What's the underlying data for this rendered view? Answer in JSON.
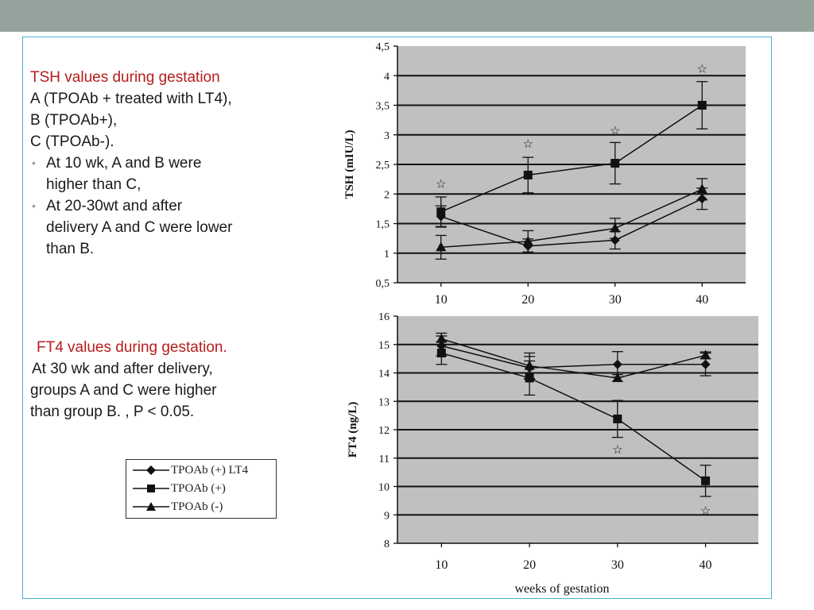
{
  "slide": {
    "tsh_heading": "TSH values  during gestation",
    "tsh_lines": [
      "A (TPOAb + treated with LT4),",
      "B (TPOAb+),",
      "C (TPOAb-)."
    ],
    "tsh_bullets": [
      [
        "At 10 wk, A and B were",
        "higher than C,"
      ],
      [
        "At 20-30wt and after",
        "delivery  A and C were lower",
        "than B."
      ]
    ],
    "ft4_heading": "FT4  values during gestation.",
    "ft4_lines": [
      "At 30 wk and after delivery,",
      "groups A and C were higher",
      "than group B. , P  < 0.05."
    ]
  },
  "legend": {
    "items": [
      {
        "label": "TPOAb (+) LT4",
        "marker": "diamond"
      },
      {
        "label": "TPOAb (+)",
        "marker": "square"
      },
      {
        "label": "TPOAb (-)",
        "marker": "triangle"
      }
    ]
  },
  "colors": {
    "plot_bg": "#c0c0c0",
    "heading_red": "#b71c1c",
    "frame": "#43b6d2",
    "topbar": "#94a39c"
  },
  "chart_data": [
    {
      "type": "line",
      "ylabel": "TSH (mIU/L)",
      "x": [
        10,
        20,
        30,
        40
      ],
      "ylim": [
        0.5,
        4.5
      ],
      "yticks": [
        "0,5",
        "1",
        "1,5",
        "2",
        "2,5",
        "3",
        "3,5",
        "4",
        "4,5"
      ],
      "xticks": [
        "10",
        "20",
        "30",
        "40"
      ],
      "grid": true,
      "series": [
        {
          "name": "TPOAb (+) LT4",
          "marker": "diamond",
          "values": [
            1.62,
            1.12,
            1.22,
            1.92
          ],
          "errors": [
            0.18,
            0.12,
            0.15,
            0.18
          ]
        },
        {
          "name": "TPOAb (+)",
          "marker": "square",
          "values": [
            1.7,
            2.32,
            2.52,
            3.5
          ],
          "errors": [
            0.25,
            0.3,
            0.35,
            0.4
          ]
        },
        {
          "name": "TPOAb (-)",
          "marker": "triangle",
          "values": [
            1.1,
            1.2,
            1.42,
            2.08
          ],
          "errors": [
            0.2,
            0.18,
            0.17,
            0.18
          ]
        }
      ],
      "annotations": [
        {
          "x": 10,
          "y": 2.17,
          "symbol": "☆"
        },
        {
          "x": 20,
          "y": 2.85,
          "symbol": "☆"
        },
        {
          "x": 30,
          "y": 3.07,
          "symbol": "☆"
        },
        {
          "x": 40,
          "y": 4.12,
          "symbol": "☆"
        }
      ]
    },
    {
      "type": "line",
      "ylabel": "FT4 (ng/L)",
      "xlabel": "weeks of gestation",
      "x": [
        10,
        20,
        30,
        40
      ],
      "ylim": [
        8,
        16
      ],
      "yticks": [
        "8",
        "9",
        "10",
        "11",
        "12",
        "13",
        "14",
        "15",
        "16"
      ],
      "xticks": [
        "10",
        "20",
        "30",
        "40"
      ],
      "grid": true,
      "series": [
        {
          "name": "TPOAb (+) LT4",
          "marker": "diamond",
          "values": [
            14.95,
            14.18,
            14.3,
            14.3
          ],
          "errors": [
            0.35,
            0.4,
            0.45,
            0.4
          ]
        },
        {
          "name": "TPOAb (+)",
          "marker": "square",
          "values": [
            14.7,
            13.82,
            12.38,
            10.2
          ],
          "errors": [
            0.4,
            0.6,
            0.65,
            0.55
          ]
        },
        {
          "name": "TPOAb (-)",
          "marker": "triangle",
          "values": [
            15.2,
            14.25,
            13.82,
            14.62
          ],
          "errors": [
            0.2,
            0.45,
            0.12,
            0.12
          ]
        }
      ],
      "annotations": [
        {
          "x": 30,
          "y": 11.3,
          "symbol": "☆"
        },
        {
          "x": 40,
          "y": 9.15,
          "symbol": "☆"
        }
      ]
    }
  ]
}
